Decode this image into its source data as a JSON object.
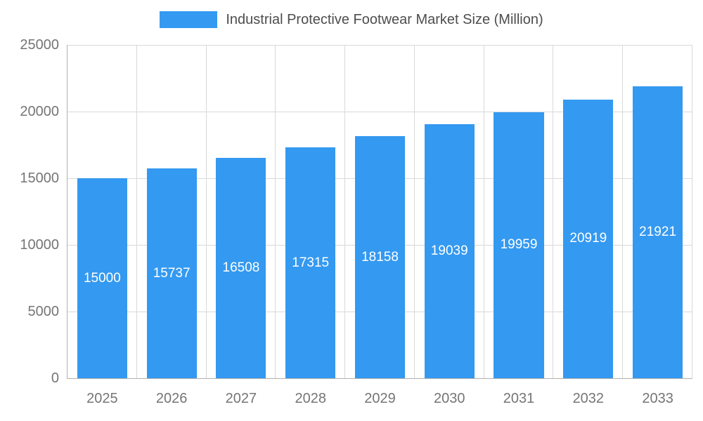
{
  "legend": {
    "label": "Industrial Protective Footwear Market Size (Million)",
    "swatch_color": "#3499f0"
  },
  "chart_data": {
    "type": "bar",
    "title": "Industrial Protective Footwear Market Size (Million)",
    "categories": [
      "2025",
      "2026",
      "2027",
      "2028",
      "2029",
      "2030",
      "2031",
      "2032",
      "2033"
    ],
    "values": [
      15000,
      15737,
      16508,
      17315,
      18158,
      19039,
      19959,
      20919,
      21921
    ],
    "xlabel": "",
    "ylabel": "",
    "ylim": [
      0,
      25000
    ],
    "yticks": [
      0,
      5000,
      10000,
      15000,
      20000,
      25000
    ],
    "bar_color": "#3499f0",
    "data_label_color": "#ffffff",
    "grid": true,
    "legend_position": "top"
  }
}
